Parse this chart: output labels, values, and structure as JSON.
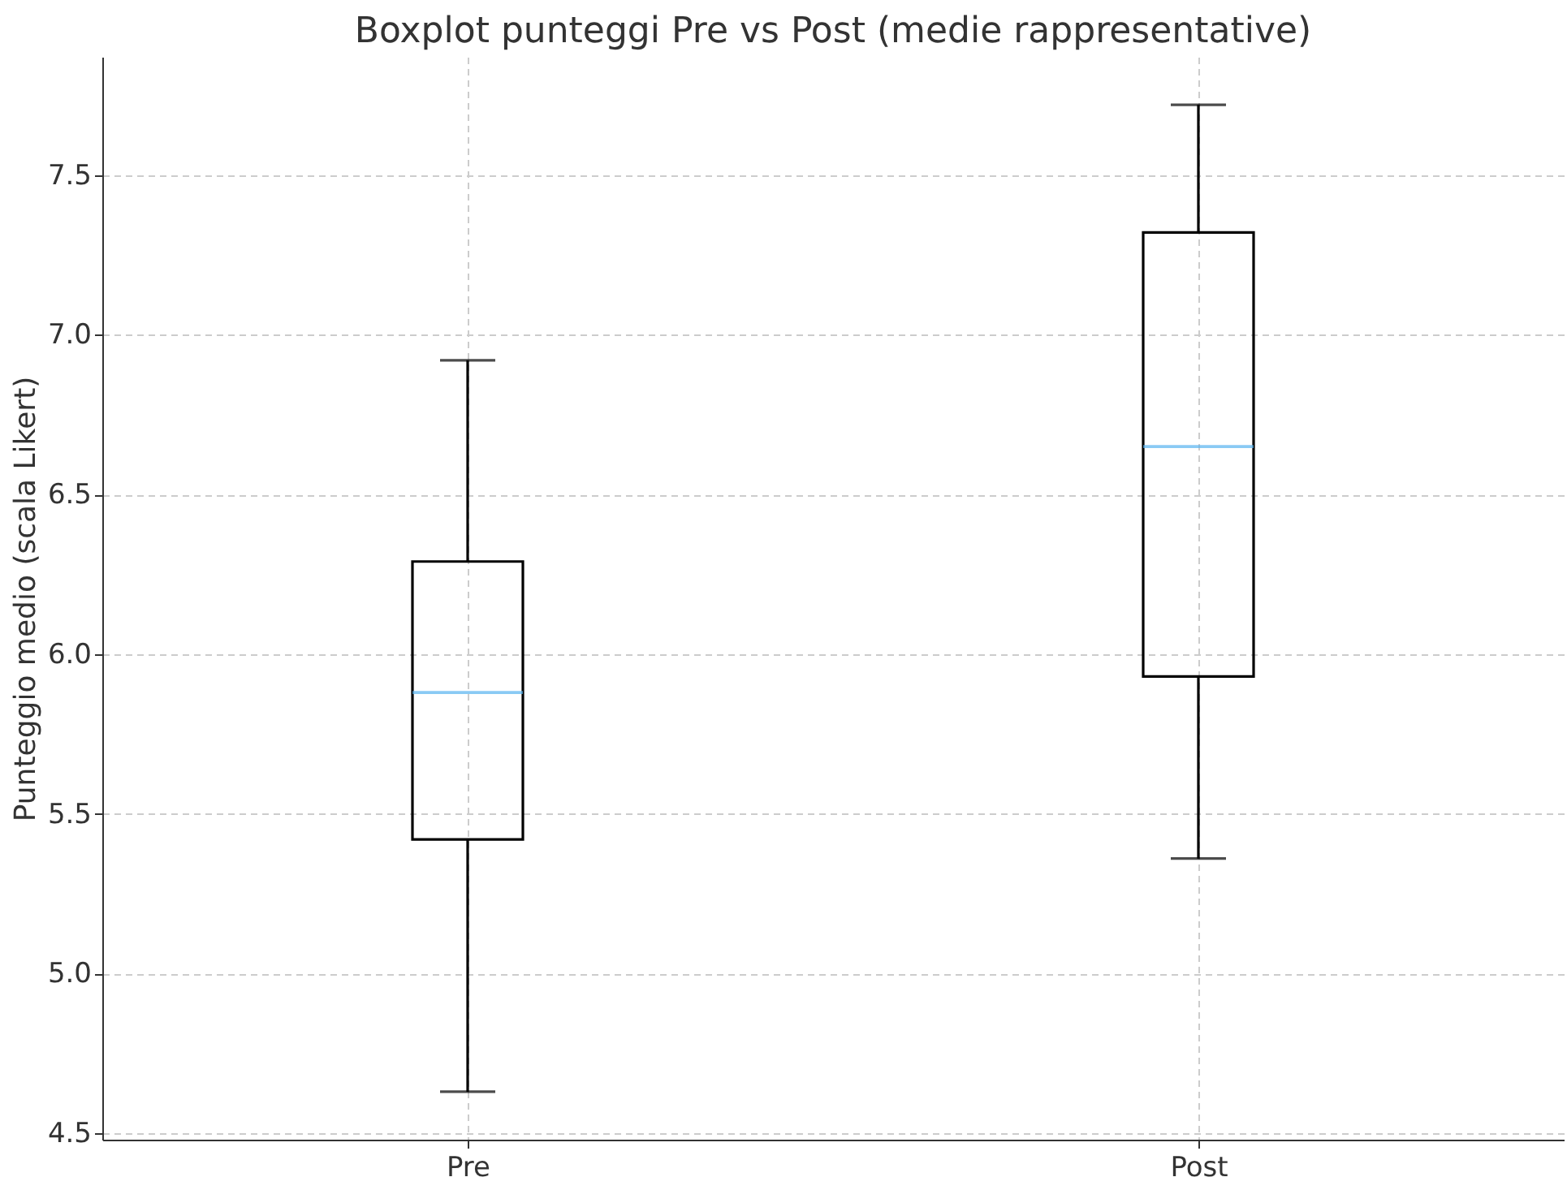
{
  "chart_data": {
    "type": "box",
    "title": "Boxplot punteggi Pre vs Post (medie rappresentative)",
    "ylabel": "Punteggio medio (scala Likert)",
    "categories": [
      "Pre",
      "Post"
    ],
    "boxes": [
      {
        "low": 4.63,
        "q1": 5.42,
        "median": 5.88,
        "q3": 6.29,
        "high": 6.92
      },
      {
        "low": 5.36,
        "q1": 5.93,
        "median": 6.65,
        "q3": 7.32,
        "high": 7.72
      }
    ],
    "color": "#59b4ef",
    "ylim": [
      4.48,
      7.87
    ],
    "yticks": [
      4.5,
      {
        "value": 5,
        "label": "5.0"
      },
      5.5,
      {
        "value": 6,
        "label": "6.0"
      },
      6.5,
      {
        "value": 7,
        "label": "7.0"
      },
      7.5
    ],
    "grid": true
  }
}
